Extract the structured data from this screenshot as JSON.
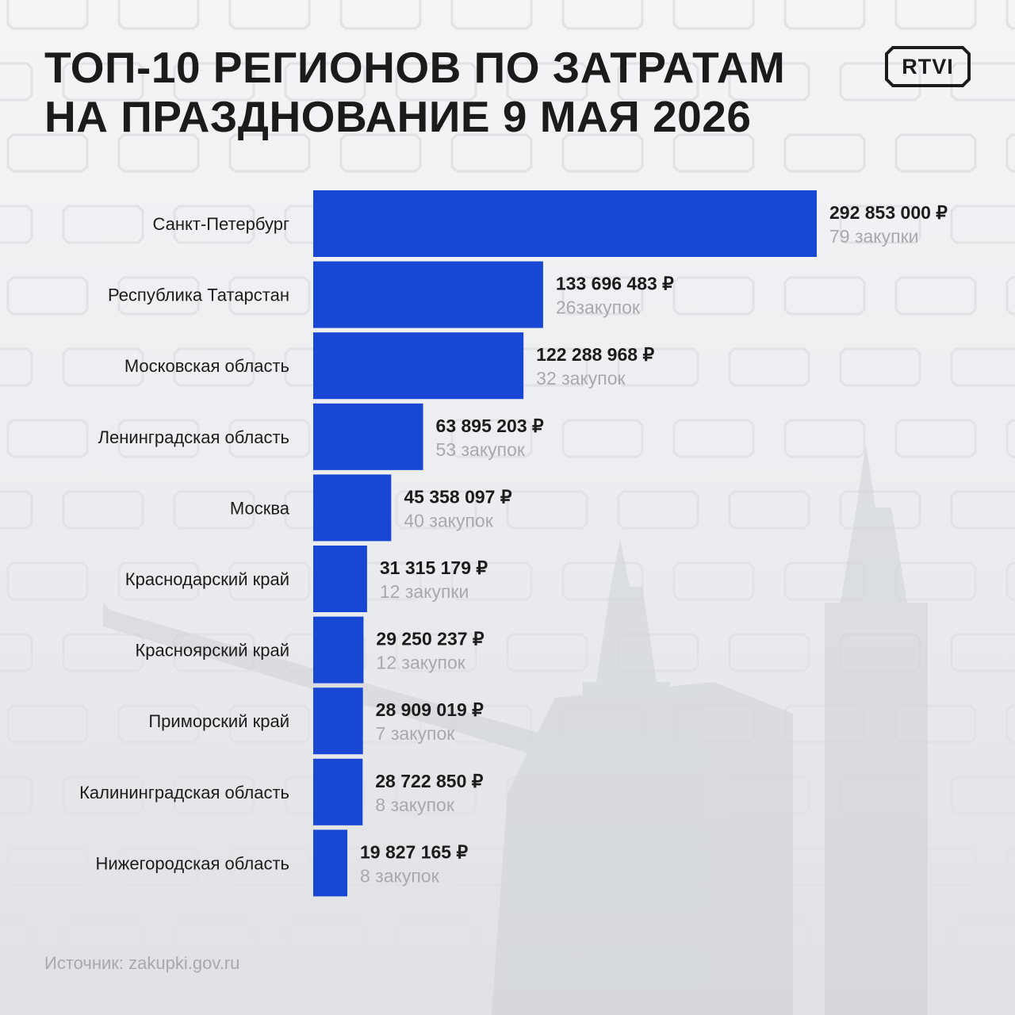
{
  "header": {
    "title_line1": "ТОП-10 РЕГИОНОВ ПО ЗАТРАТАМ",
    "title_line2": "НА ПРАЗДНОВАНИЕ 9 МАЯ 2026",
    "logo_text": "RTVI"
  },
  "footer": {
    "source": "Источник: zakupki.gov.ru"
  },
  "colors": {
    "bar": "#1747d3",
    "value_text": "#1c1c1c",
    "count_text": "#a7a9ad",
    "category_text": "#1c1c1c"
  },
  "chart_data": {
    "type": "bar",
    "orientation": "horizontal",
    "title": "ТОП-10 РЕГИОНОВ ПО ЗАТРАТАМ НА ПРАЗДНОВАНИЕ 9 МАЯ 2026",
    "categories": [
      "Санкт-Петербург",
      "Республика Татарстан",
      "Московская область",
      "Ленинградская область",
      "Москва",
      "Краснодарский край",
      "Красноярский край",
      "Приморский край",
      "Калининградская область",
      "Нижегородская область"
    ],
    "values": [
      292853000,
      133696483,
      122288968,
      63895203,
      45358097,
      31315179,
      29250237,
      28909019,
      28722850,
      19827165
    ],
    "value_labels": [
      "292 853 000 ₽",
      "133 696 483 ₽",
      "122 288 968 ₽",
      "63 895 203 ₽",
      "45 358 097 ₽",
      "31 315 179 ₽",
      "29 250 237 ₽",
      "28 909 019 ₽",
      "28 722 850 ₽",
      "19 827 165 ₽"
    ],
    "count_labels": [
      "79 закупки",
      "26закупок",
      "32 закупок",
      "53 закупок",
      "40 закупок",
      "12 закупки",
      "12 закупок",
      "7 закупок",
      "8 закупок",
      "8 закупок"
    ],
    "xlim": [
      0,
      292853000
    ],
    "grid": false,
    "legend": "none"
  }
}
